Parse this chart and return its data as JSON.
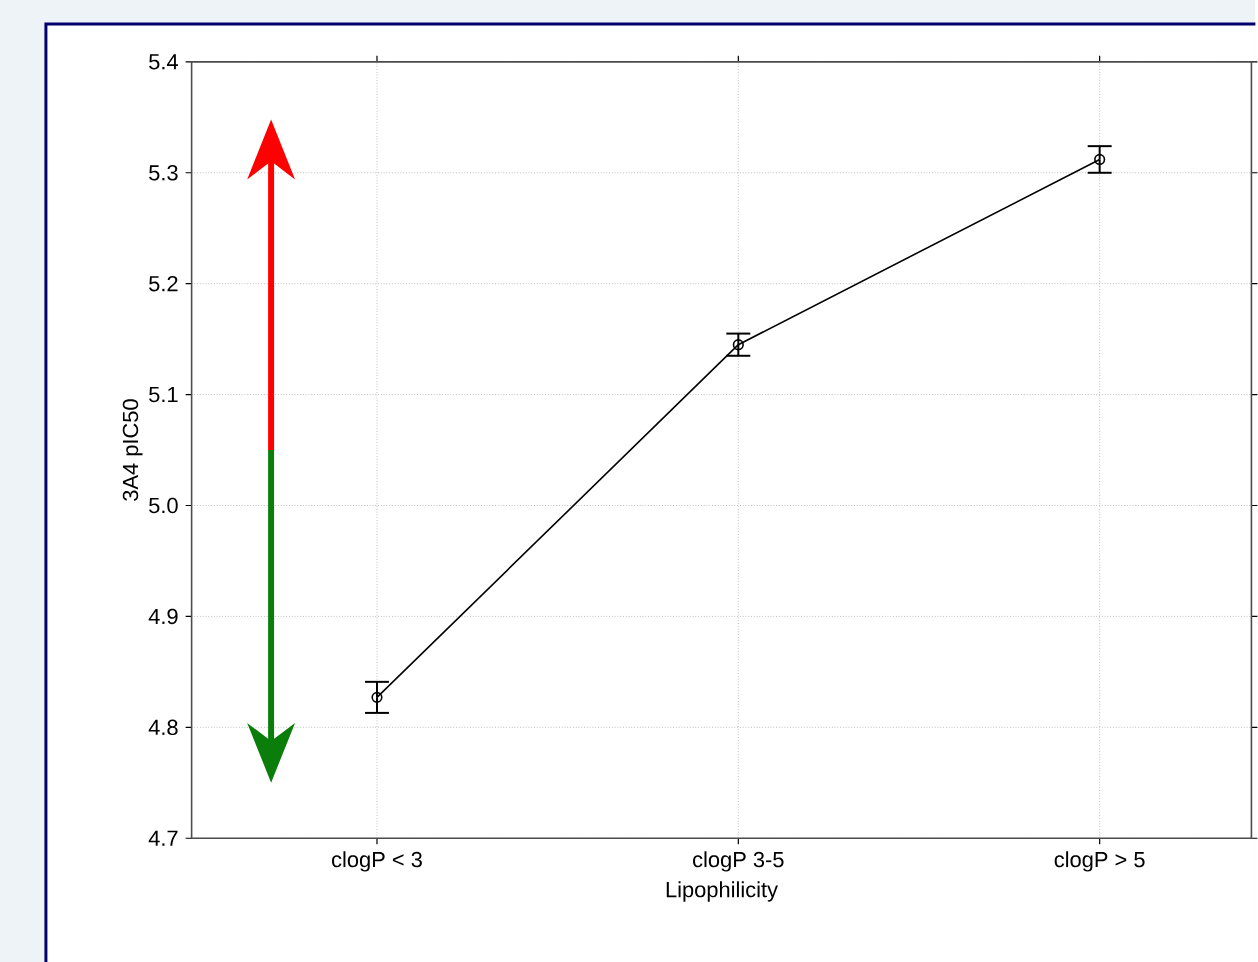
{
  "chart_data": {
    "type": "line",
    "xlabel": "Lipophilicity",
    "ylabel": "3A4 pIC50",
    "categories": [
      "clogP < 3",
      "clogP 3-5",
      "clogP > 5"
    ],
    "series": [
      {
        "color": "#000000",
        "values": [
          4.827,
          5.145,
          5.312
        ],
        "errors": [
          0.014,
          0.01,
          0.012
        ]
      }
    ],
    "ylim": [
      4.7,
      5.4
    ],
    "yticks": [
      4.7,
      4.8,
      4.9,
      {
        "value": 5,
        "label": "5.0"
      },
      5.1,
      5.2,
      5.3,
      5.4
    ],
    "grid": true,
    "marker": "circle",
    "line_style": "solid"
  }
}
